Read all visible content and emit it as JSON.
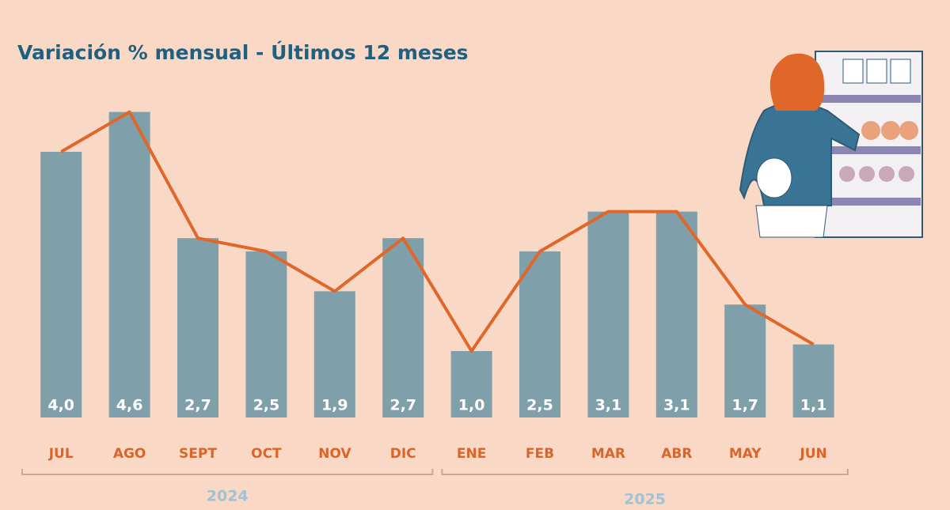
{
  "chart_data": {
    "type": "bar",
    "title": "Variación % mensual - Últimos 12 meses",
    "categories": [
      "JUL",
      "AGO",
      "SEPT",
      "OCT",
      "NOV",
      "DIC",
      "ENE",
      "FEB",
      "MAR",
      "ABR",
      "MAY",
      "JUN"
    ],
    "values": [
      4.0,
      4.6,
      2.7,
      2.5,
      1.9,
      2.7,
      1.0,
      2.5,
      3.1,
      3.1,
      1.7,
      1.1
    ],
    "value_labels": [
      "4,0",
      "4,6",
      "2,7",
      "2,5",
      "1,9",
      "2,7",
      "1,0",
      "2,5",
      "3,1",
      "3,1",
      "1,7",
      "1,1"
    ],
    "color": "#7f9fab",
    "line_color": "#e0672a",
    "ylim": [
      0,
      5
    ],
    "groups": [
      {
        "label": "2024",
        "count": 6
      },
      {
        "label": "2025",
        "count": 6
      }
    ]
  }
}
